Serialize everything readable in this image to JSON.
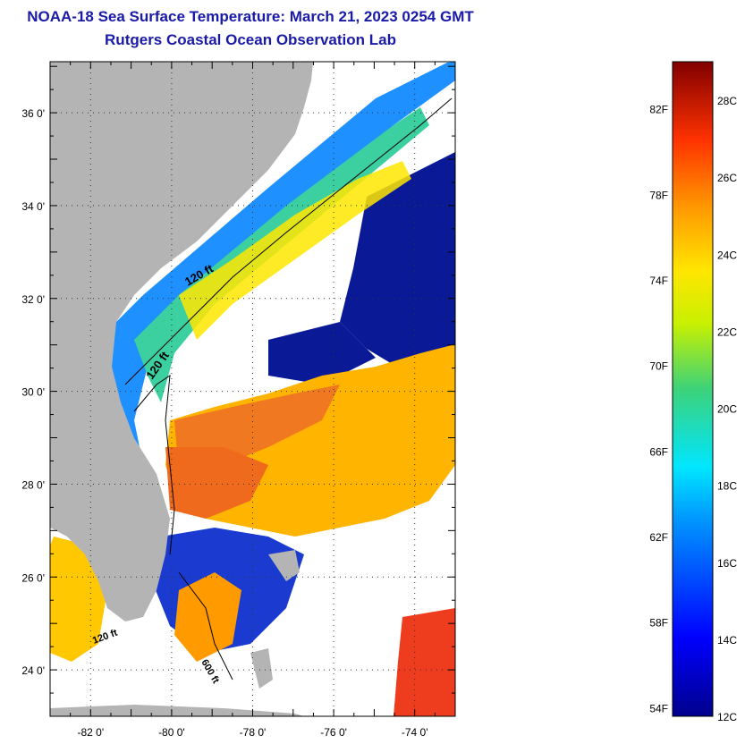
{
  "title": "NOAA-18 Sea Surface Temperature:  March 21, 2023 0254 GMT",
  "subtitle": "Rutgers Coastal Ocean Observation Lab",
  "map": {
    "lat_labels": [
      {
        "value": 36,
        "text": "36 0'"
      },
      {
        "value": 34,
        "text": "34 0'"
      },
      {
        "value": 32,
        "text": "32 0'"
      },
      {
        "value": 30,
        "text": "30 0'"
      },
      {
        "value": 28,
        "text": "28 0'"
      },
      {
        "value": 26,
        "text": "26 0'"
      },
      {
        "value": 24,
        "text": "24 0'"
      }
    ],
    "lon_labels": [
      {
        "value": -82,
        "text": "-82 0'"
      },
      {
        "value": -80,
        "text": "-80 0'"
      },
      {
        "value": -78,
        "text": "-78 0'"
      },
      {
        "value": -76,
        "text": "-76 0'"
      },
      {
        "value": -74,
        "text": "-74 0'"
      }
    ],
    "lat_range": [
      23.0,
      37.1
    ],
    "lon_range": [
      -83.0,
      -73.0
    ],
    "contour_labels": [
      "120 ft",
      "120 ft",
      "120 ft",
      "600 ft"
    ],
    "colors": {
      "land": "#b4b4b4",
      "cloud": "#ffffff",
      "cold": "#0a1a96",
      "warm": "#f07820"
    }
  },
  "colorbar": {
    "fahrenheit": [
      "82F",
      "78F",
      "74F",
      "70F",
      "66F",
      "62F",
      "58F",
      "54F"
    ],
    "celsius": [
      "28C",
      "26C",
      "24C",
      "22C",
      "20C",
      "18C",
      "16C",
      "14C",
      "12C"
    ],
    "range_c": [
      12,
      29
    ]
  }
}
